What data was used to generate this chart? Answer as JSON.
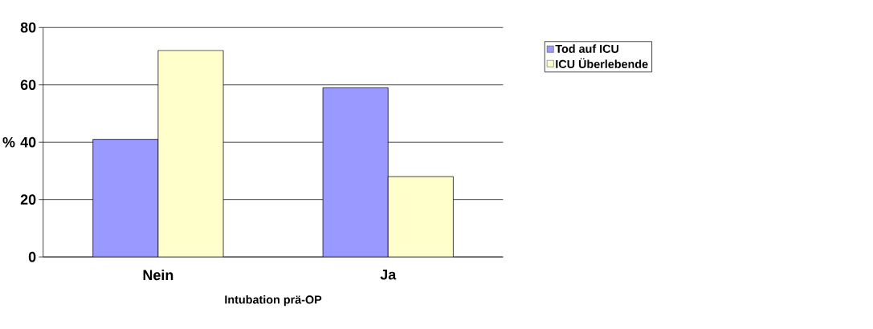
{
  "chart_data": {
    "type": "bar",
    "xlabel": "Intubation prä-OP",
    "ylabel": "%",
    "categories": [
      "Nein",
      "Ja"
    ],
    "series": [
      {
        "name": "Tod auf ICU",
        "color": "#9999ff",
        "values": [
          41,
          59
        ]
      },
      {
        "name": "ICU Überlebende",
        "color": "#ffffcc",
        "values": [
          72,
          28
        ]
      }
    ],
    "ylim": [
      0,
      80
    ],
    "yticks": [
      0,
      20,
      40,
      60,
      80
    ],
    "grid": "y",
    "legend": "top right"
  }
}
